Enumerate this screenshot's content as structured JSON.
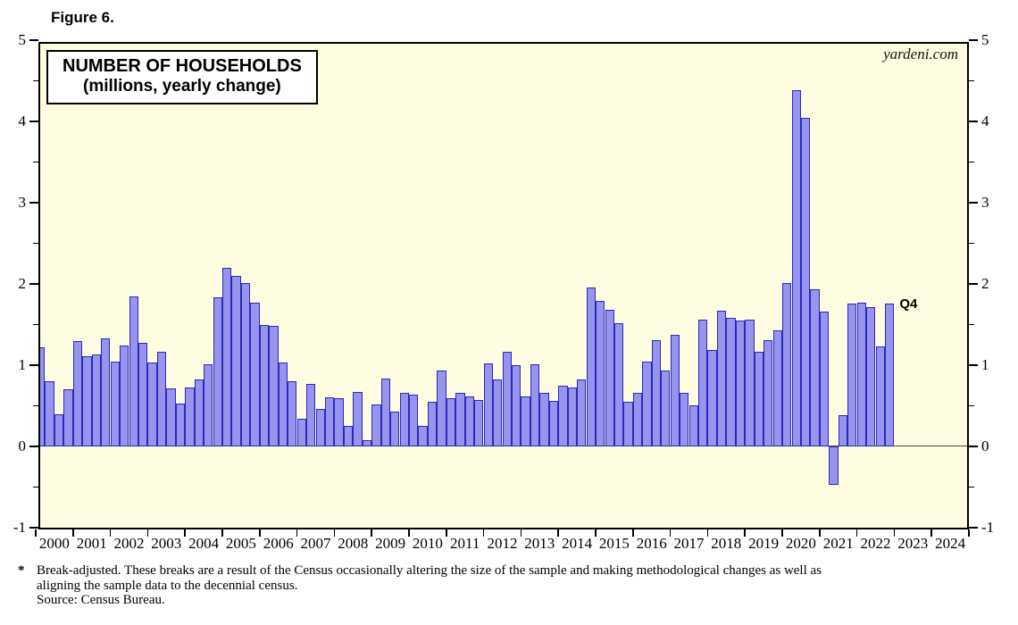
{
  "figure_label": "Figure 6.",
  "title_line1": "NUMBER OF HOUSEHOLDS",
  "title_line2": "(millions, yearly change)",
  "watermark": "yardeni.com",
  "annotation_q4": "Q4",
  "footnote_star": "*",
  "footnote_line1": "Break-adjusted. These breaks are a result of the Census occasionally altering the size of the sample and making methodological changes as well as",
  "footnote_line2": "aligning the sample data to the decennial census.",
  "footnote_source": "Source: Census Bureau.",
  "colors": {
    "plot_background": "#fffde1",
    "bar_fill": "#9694ec",
    "bar_border": "#2a28c0",
    "frame": "#000000",
    "zero_line": "#4a4a4a"
  },
  "chart_data": {
    "type": "bar",
    "title": "NUMBER OF HOUSEHOLDS (millions, yearly change)",
    "xlabel": "",
    "ylabel": "",
    "ylim": [
      -1,
      5
    ],
    "y_major_ticks": [
      -1,
      0,
      1,
      2,
      3,
      4,
      5
    ],
    "y_minor_step": 0.5,
    "grid": "zero-line-only",
    "legend_position": "none",
    "x_axis_years": [
      2000,
      2001,
      2002,
      2003,
      2004,
      2005,
      2006,
      2007,
      2008,
      2009,
      2010,
      2011,
      2012,
      2013,
      2014,
      2015,
      2016,
      2017,
      2018,
      2019,
      2020,
      2021,
      2022,
      2023,
      2024
    ],
    "frequency": "quarterly",
    "last_point_label": "Q4",
    "series": [
      {
        "year": 2000,
        "values": [
          1.22,
          0.8,
          0.4,
          0.7
        ]
      },
      {
        "year": 2001,
        "values": [
          1.3,
          1.11,
          1.13,
          1.33
        ]
      },
      {
        "year": 2002,
        "values": [
          1.04,
          1.24,
          1.85,
          1.28
        ]
      },
      {
        "year": 2003,
        "values": [
          1.03,
          1.16,
          0.71,
          0.53
        ]
      },
      {
        "year": 2004,
        "values": [
          0.73,
          0.83,
          1.01,
          1.84
        ]
      },
      {
        "year": 2005,
        "values": [
          2.2,
          2.1,
          2.01,
          1.77
        ]
      },
      {
        "year": 2006,
        "values": [
          1.5,
          1.48,
          1.03,
          0.8
        ]
      },
      {
        "year": 2007,
        "values": [
          0.34,
          0.77,
          0.46,
          0.61
        ]
      },
      {
        "year": 2008,
        "values": [
          0.59,
          0.25,
          0.67,
          0.08
        ]
      },
      {
        "year": 2009,
        "values": [
          0.52,
          0.84,
          0.43,
          0.66
        ]
      },
      {
        "year": 2010,
        "values": [
          0.64,
          0.25,
          0.55,
          0.94
        ]
      },
      {
        "year": 2011,
        "values": [
          0.59,
          0.66,
          0.62,
          0.57
        ]
      },
      {
        "year": 2012,
        "values": [
          1.02,
          0.82,
          1.16,
          1.0
        ]
      },
      {
        "year": 2013,
        "values": [
          0.62,
          1.01,
          0.66,
          0.56
        ]
      },
      {
        "year": 2014,
        "values": [
          0.75,
          0.73,
          0.82,
          1.96
        ]
      },
      {
        "year": 2015,
        "values": [
          1.79,
          1.68,
          1.52,
          0.55
        ]
      },
      {
        "year": 2016,
        "values": [
          0.66,
          1.04,
          1.31,
          0.93
        ]
      },
      {
        "year": 2017,
        "values": [
          1.37,
          0.66,
          0.51,
          1.56
        ]
      },
      {
        "year": 2018,
        "values": [
          1.19,
          1.67,
          1.58,
          1.55
        ]
      },
      {
        "year": 2019,
        "values": [
          1.56,
          1.16,
          1.31,
          1.43
        ]
      },
      {
        "year": 2020,
        "values": [
          2.01,
          4.39,
          4.04,
          1.93
        ]
      },
      {
        "year": 2021,
        "values": [
          1.66,
          -0.47,
          0.38,
          1.76
        ]
      },
      {
        "year": 2022,
        "values": [
          1.77,
          1.71,
          1.23,
          1.76
        ]
      }
    ]
  }
}
